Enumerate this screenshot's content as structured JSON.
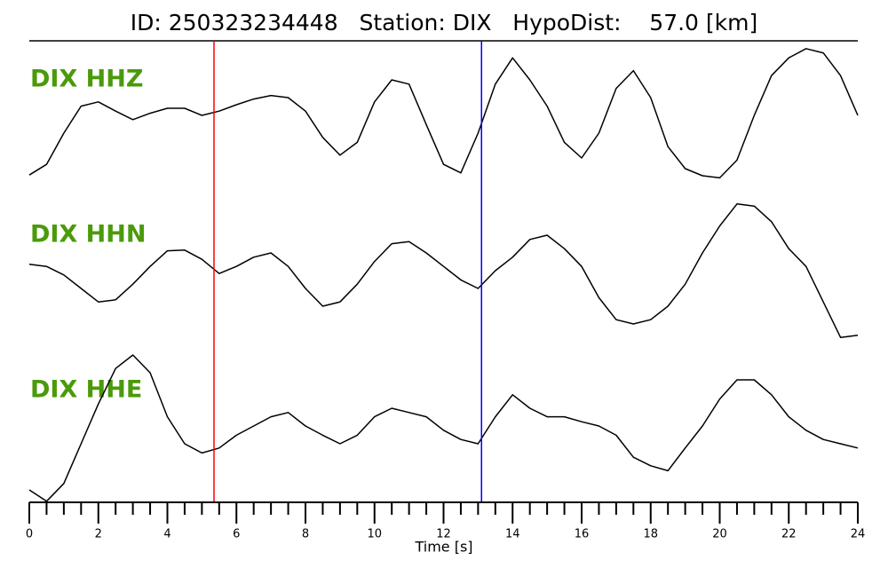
{
  "chart_data": {
    "type": "waveform",
    "title": "ID: 250323234448   Station: DIX   HypoDist:    57.0 [km]",
    "xlabel": "Time [s]",
    "xlim": [
      0,
      24
    ],
    "xticks": [
      0,
      2,
      4,
      6,
      8,
      10,
      12,
      14,
      16,
      18,
      20,
      22,
      24
    ],
    "xminorticks": [
      0.5,
      1,
      1.5,
      2.5,
      3,
      3.5,
      4.5,
      5,
      5.5,
      6.5,
      7,
      7.5,
      8.5,
      9,
      9.5,
      10.5,
      11,
      11.5,
      12.5,
      13,
      13.5,
      14.5,
      15,
      15.5,
      16.5,
      17,
      17.5,
      18.5,
      19,
      19.5,
      20.5,
      21,
      21.5,
      22.5,
      23,
      23.5
    ],
    "label_color": "#4a9a0a",
    "picks": [
      {
        "x": 5.35,
        "color": "#ff0000"
      },
      {
        "x": 13.1,
        "color": "#0000ff"
      }
    ],
    "x": [
      0,
      0.5,
      1,
      1.5,
      2,
      2.5,
      3,
      3.5,
      4,
      4.5,
      5,
      5.5,
      6,
      6.5,
      7,
      7.5,
      8,
      8.5,
      9,
      9.5,
      10,
      10.5,
      11,
      11.5,
      12,
      12.5,
      13,
      13.5,
      14,
      14.5,
      15,
      15.5,
      16,
      16.5,
      17,
      17.5,
      18,
      18.5,
      19,
      19.5,
      20,
      20.5,
      21,
      21.5,
      22,
      22.5,
      23,
      23.5,
      24
    ],
    "series": [
      {
        "name": "DIX HHZ",
        "color": "#000000",
        "values": [
          -0.84,
          -0.69,
          -0.25,
          0.13,
          0.19,
          0.06,
          -0.06,
          0.03,
          0.1,
          0.1,
          0,
          0.06,
          0.15,
          0.23,
          0.28,
          0.25,
          0.06,
          -0.31,
          -0.56,
          -0.38,
          0.19,
          0.5,
          0.44,
          -0.13,
          -0.69,
          -0.81,
          -0.25,
          0.44,
          0.81,
          0.5,
          0.13,
          -0.38,
          -0.6,
          -0.25,
          0.38,
          0.63,
          0.25,
          -0.44,
          -0.75,
          -0.85,
          -0.88,
          -0.63,
          0,
          0.56,
          0.81,
          0.94,
          0.88,
          0.56,
          0
        ]
      },
      {
        "name": "DIX HHN",
        "color": "#000000",
        "values": [
          0.09,
          0.06,
          -0.06,
          -0.25,
          -0.44,
          -0.41,
          -0.19,
          0.06,
          0.28,
          0.29,
          0.16,
          -0.04,
          0.06,
          0.19,
          0.25,
          0.06,
          -0.25,
          -0.5,
          -0.44,
          -0.19,
          0.13,
          0.38,
          0.41,
          0.25,
          0.06,
          -0.13,
          -0.25,
          0,
          0.19,
          0.44,
          0.5,
          0.31,
          0.06,
          -0.38,
          -0.69,
          -0.75,
          -0.69,
          -0.5,
          -0.19,
          0.25,
          0.63,
          0.94,
          0.91,
          0.69,
          0.31,
          0.06,
          -0.44,
          -0.94,
          -0.91
        ]
      },
      {
        "name": "DIX HHE",
        "color": "#000000",
        "values": [
          -0.9,
          -1.06,
          -0.81,
          -0.25,
          0.31,
          0.81,
          1,
          0.75,
          0.13,
          -0.25,
          -0.38,
          -0.31,
          -0.13,
          0,
          0.13,
          0.19,
          0,
          -0.13,
          -0.25,
          -0.13,
          0.13,
          0.25,
          0.19,
          0.13,
          -0.06,
          -0.19,
          -0.25,
          0.13,
          0.44,
          0.25,
          0.13,
          0.13,
          0.06,
          0,
          -0.13,
          -0.44,
          -0.56,
          -0.63,
          -0.31,
          0,
          0.38,
          0.65,
          0.65,
          0.44,
          0.13,
          -0.06,
          -0.19,
          -0.25,
          -0.31
        ]
      }
    ]
  }
}
